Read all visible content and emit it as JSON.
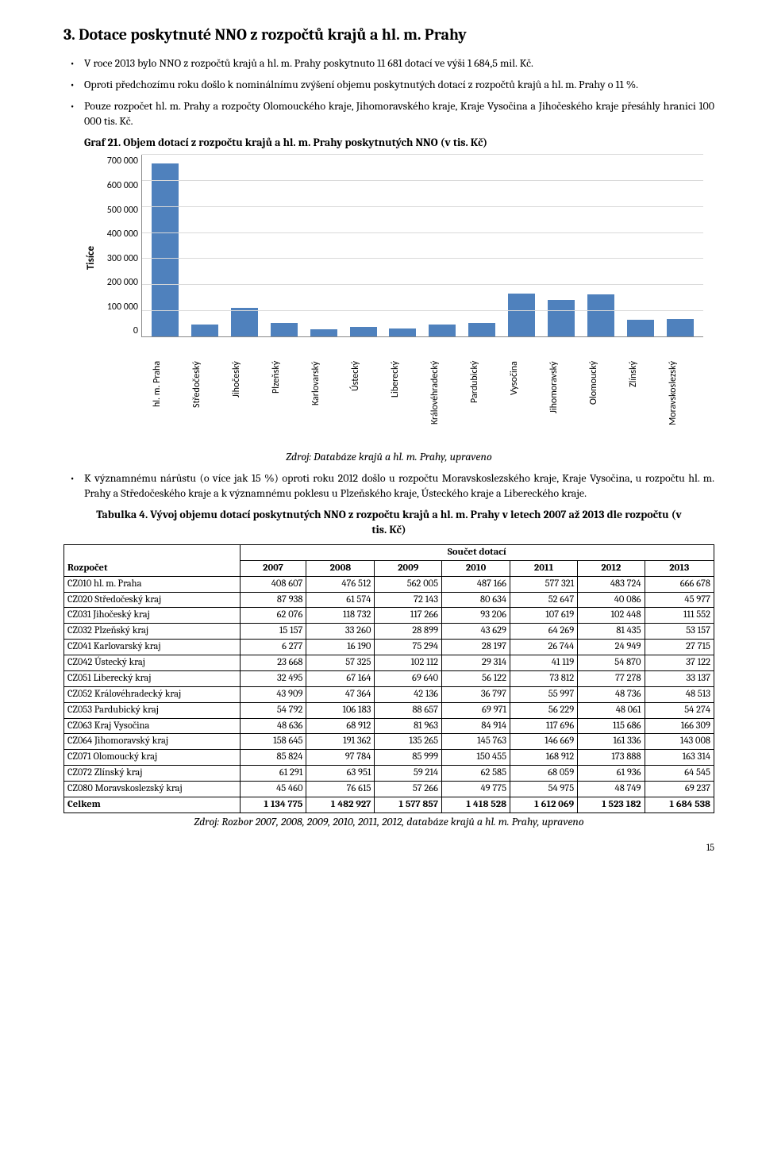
{
  "heading": "3. Dotace poskytnuté NNO z rozpočtů krajů a hl. m. Prahy",
  "bullets_top": [
    "V roce 2013 bylo NNO z rozpočtů krajů a hl. m. Prahy poskytnuto 11 681 dotací ve výši 1 684,5 mil. Kč.",
    "Oproti předchozímu roku došlo k nominálnímu zvýšení objemu poskytnutých dotací z rozpočtů krajů a hl. m. Prahy o 11 %.",
    "Pouze rozpočet hl. m. Prahy a rozpočty Olomouckého kraje, Jihomoravského kraje, Kraje Vysočina a Jihočeského kraje přesáhly hranici 100 000 tis. Kč."
  ],
  "graf_title": "Graf 21. Objem dotací z rozpočtu krajů a hl. m. Prahy poskytnutých NNO (v tis. Kč)",
  "chart": {
    "ylabel": "Tisíce",
    "ymax": 700000,
    "yticks": [
      "700 000",
      "600 000",
      "500 000",
      "400 000",
      "300 000",
      "200 000",
      "100 000",
      "0"
    ],
    "bar_color": "#4f81bd",
    "grid_color": "#d9d9d9",
    "categories": [
      "hl. m. Praha",
      "Středočeský",
      "Jihočeský",
      "Plzeňský",
      "Karlovarský",
      "Ústecký",
      "Liberecký",
      "Královéhradecký",
      "Pardubický",
      "Vysočina",
      "Jihomoravský",
      "Olomoucký",
      "Zlínský",
      "Moravskoslezský"
    ],
    "values": [
      666678,
      45977,
      111552,
      53157,
      27715,
      37122,
      33137,
      48513,
      54274,
      166309,
      143008,
      163314,
      64545,
      69237
    ]
  },
  "source1": "Zdroj: Databáze krajů a hl. m. Prahy, upraveno",
  "bullets_bottom": [
    "K významnému nárůstu (o více jak 15 %) oproti roku 2012 došlo u rozpočtu Moravskoslezského kraje, Kraje Vysočina, u rozpočtu hl. m. Prahy a Středočeského kraje a k významnému poklesu u Plzeňského kraje, Ústeckého kraje a Libereckého kraje."
  ],
  "tab_title": "Tabulka 4. Vývoj objemu dotací poskytnutých NNO  z rozpočtu krajů a hl. m. Prahy v letech 2007 až 2013 dle rozpočtu (v tis. Kč)",
  "table": {
    "row_header": "Rozpočet",
    "group_header": "Součet dotací",
    "years": [
      "2007",
      "2008",
      "2009",
      "2010",
      "2011",
      "2012",
      "2013"
    ],
    "rows": [
      {
        "label": "CZ010 hl. m. Praha",
        "vals": [
          "408 607",
          "476 512",
          "562 005",
          "487 166",
          "577 321",
          "483 724",
          "666 678"
        ]
      },
      {
        "label": "CZ020 Středočeský kraj",
        "vals": [
          "87 938",
          "61 574",
          "72 143",
          "80 634",
          "52 647",
          "40 086",
          "45 977"
        ]
      },
      {
        "label": "CZ031 Jihočeský kraj",
        "vals": [
          "62 076",
          "118 732",
          "117 266",
          "93 206",
          "107 619",
          "102 448",
          "111 552"
        ]
      },
      {
        "label": "CZ032 Plzeňský kraj",
        "vals": [
          "15 157",
          "33 260",
          "28 899",
          "43 629",
          "64 269",
          "81 435",
          "53 157"
        ]
      },
      {
        "label": "CZ041 Karlovarský kraj",
        "vals": [
          "6 277",
          "16 190",
          "75 294",
          "28 197",
          "26 744",
          "24 949",
          "27 715"
        ]
      },
      {
        "label": "CZ042 Ústecký kraj",
        "vals": [
          "23 668",
          "57 325",
          "102 112",
          "29 314",
          "41 119",
          "54 870",
          "37 122"
        ]
      },
      {
        "label": "CZ051 Liberecký kraj",
        "vals": [
          "32 495",
          "67 164",
          "69 640",
          "56 122",
          "73 812",
          "77 278",
          "33 137"
        ]
      },
      {
        "label": "CZ052 Královéhradecký kraj",
        "vals": [
          "43 909",
          "47 364",
          "42 136",
          "36 797",
          "55 997",
          "48 736",
          "48 513"
        ]
      },
      {
        "label": "CZ053 Pardubický kraj",
        "vals": [
          "54 792",
          "106 183",
          "88 657",
          "69 971",
          "56 229",
          "48 061",
          "54 274"
        ]
      },
      {
        "label": "CZ063 Kraj Vysočina",
        "vals": [
          "48 636",
          "68 912",
          "81 963",
          "84 914",
          "117 696",
          "115 686",
          "166 309"
        ]
      },
      {
        "label": "CZ064 Jihomoravský kraj",
        "vals": [
          "158 645",
          "191 362",
          "135 265",
          "145 763",
          "146 669",
          "161 336",
          "143 008"
        ]
      },
      {
        "label": "CZ071 Olomoucký kraj",
        "vals": [
          "85 824",
          "97 784",
          "85 999",
          "150 455",
          "168 912",
          "173 888",
          "163 314"
        ]
      },
      {
        "label": "CZ072 Zlínský kraj",
        "vals": [
          "61 291",
          "63 951",
          "59 214",
          "62 585",
          "68 059",
          "61 936",
          "64 545"
        ]
      },
      {
        "label": "CZ080 Moravskoslezský kraj",
        "vals": [
          "45 460",
          "76 615",
          "57 266",
          "49 775",
          "54 975",
          "48 749",
          "69 237"
        ]
      }
    ],
    "total": {
      "label": "Celkem",
      "vals": [
        "1 134 775",
        "1 482 927",
        "1 577 857",
        "1 418 528",
        "1 612 069",
        "1 523 182",
        "1 684 538"
      ]
    }
  },
  "source2": "Zdroj: Rozbor 2007, 2008, 2009, 2010, 2011, 2012, databáze krajů a hl. m. Prahy, upraveno",
  "pagenum": "15"
}
